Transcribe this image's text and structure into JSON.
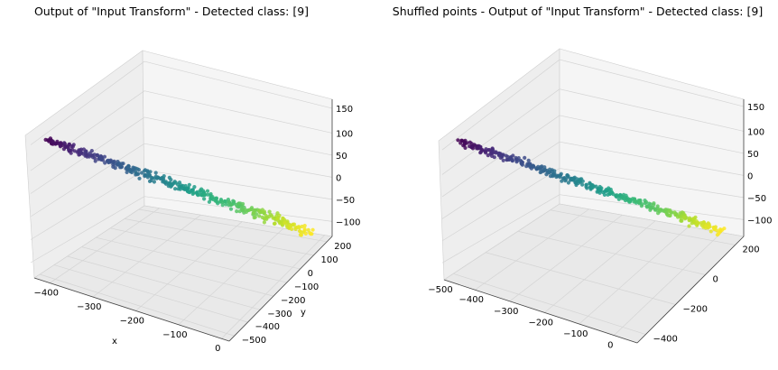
{
  "chart_data": [
    {
      "type": "scatter",
      "projection": "3d",
      "title": "Output of \"Input Transform\" - Detected class: [9]",
      "xlabel": "x",
      "ylabel": "y",
      "zlabel": "",
      "xlim": [
        -460,
        60
      ],
      "ylim": [
        -520,
        260
      ],
      "zlim": [
        -130,
        160
      ],
      "xticks": [
        "−400",
        "−300",
        "−200",
        "−100",
        "0"
      ],
      "yticks": [
        "−500",
        "−400",
        "−300",
        "−200",
        "−100",
        "0",
        "100",
        "200"
      ],
      "zticks": [
        "−100",
        "−50",
        "0",
        "50",
        "100",
        "150"
      ],
      "colormap": "viridis",
      "pane_color": "#f2f2f2",
      "grid": true,
      "points_description": "about 400 points forming an elongated cloud running from x≈-430 to x≈0, colored by point index along the viridis colormap"
    },
    {
      "type": "scatter",
      "projection": "3d",
      "title": "Shuffled points - Output of \"Input Transform\" - Detected class: [9]",
      "xlabel": "",
      "ylabel": "",
      "zlabel": "",
      "xlim": [
        -520,
        60
      ],
      "ylim": [
        -520,
        360
      ],
      "zlim": [
        -130,
        160
      ],
      "xticks": [
        "−500",
        "−400",
        "−300",
        "−200",
        "−100",
        "0"
      ],
      "yticks": [
        "−400",
        "−200",
        "0",
        "200"
      ],
      "zticks": [
        "−100",
        "−50",
        "0",
        "50",
        "100",
        "150"
      ],
      "colormap": "viridis",
      "pane_color": "#f2f2f2",
      "grid": true,
      "points_description": "same point cloud with shuffled ordering, again colored with the viridis colormap from dark purple to yellow"
    }
  ]
}
